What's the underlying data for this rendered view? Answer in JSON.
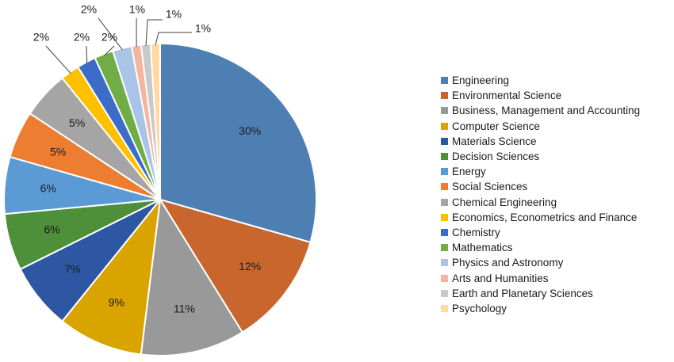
{
  "chart_data": {
    "type": "pie",
    "title": "",
    "legend_position": "right",
    "slices": [
      {
        "label": "Engineering",
        "value": 30,
        "value_label": "30%",
        "color": "#4e7fb3"
      },
      {
        "label": "Environmental Science",
        "value": 12,
        "value_label": "12%",
        "color": "#c8662e"
      },
      {
        "label": "Business, Management and Accounting",
        "value": 11,
        "value_label": "11%",
        "color": "#999999"
      },
      {
        "label": "Computer Science",
        "value": 9,
        "value_label": "9%",
        "color": "#d9a400"
      },
      {
        "label": "Materials Science",
        "value": 7,
        "value_label": "7%",
        "color": "#2e57a3"
      },
      {
        "label": "Decision Sciences",
        "value": 6,
        "value_label": "6%",
        "color": "#4e8f3a"
      },
      {
        "label": "Energy",
        "value": 6,
        "value_label": "6%",
        "color": "#5b9bd5"
      },
      {
        "label": "Social Sciences",
        "value": 5,
        "value_label": "5%",
        "color": "#ed7d31"
      },
      {
        "label": "Chemical Engineering",
        "value": 5,
        "value_label": "5%",
        "color": "#a5a5a5"
      },
      {
        "label": "Economics, Econometrics and Finance",
        "value": 2,
        "value_label": "2%",
        "color": "#ffc000"
      },
      {
        "label": "Chemistry",
        "value": 2,
        "value_label": "2%",
        "color": "#3a6cc8"
      },
      {
        "label": "Mathematics",
        "value": 2,
        "value_label": "2%",
        "color": "#70ad47"
      },
      {
        "label": "Physics and Astronomy",
        "value": 2,
        "value_label": "2%",
        "color": "#a9c4e6"
      },
      {
        "label": "Arts and Humanities",
        "value": 1,
        "value_label": "1%",
        "color": "#f4b4a0"
      },
      {
        "label": "Earth and Planetary Sciences",
        "value": 1,
        "value_label": "1%",
        "color": "#c9c9c9"
      },
      {
        "label": "Psychology",
        "value": 1,
        "value_label": "1%",
        "color": "#ffd9a0"
      }
    ]
  }
}
